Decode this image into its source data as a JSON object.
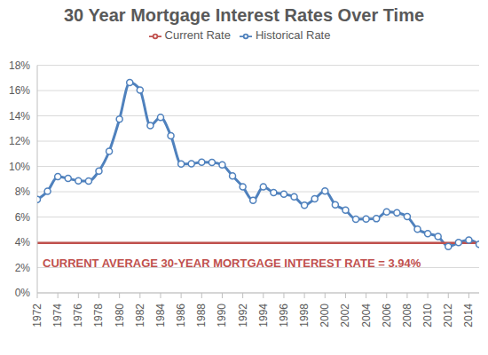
{
  "chart_data": {
    "type": "line",
    "title": "30 Year Mortgage Interest Rates Over Time",
    "x": [
      1972,
      1973,
      1974,
      1975,
      1976,
      1977,
      1978,
      1979,
      1980,
      1981,
      1982,
      1983,
      1984,
      1985,
      1986,
      1987,
      1988,
      1989,
      1990,
      1991,
      1992,
      1993,
      1994,
      1995,
      1996,
      1997,
      1998,
      1999,
      2000,
      2001,
      2002,
      2003,
      2004,
      2005,
      2006,
      2007,
      2008,
      2009,
      2010,
      2011,
      2012,
      2013,
      2014,
      2015
    ],
    "series": [
      {
        "name": "Historical Rate",
        "color": "#4f81bd",
        "marker": "circle",
        "values": [
          7.38,
          8.04,
          9.19,
          9.05,
          8.87,
          8.85,
          9.64,
          11.2,
          13.74,
          16.63,
          16.04,
          13.24,
          13.88,
          12.43,
          10.19,
          10.21,
          10.34,
          10.32,
          10.13,
          9.25,
          8.39,
          7.31,
          8.38,
          7.93,
          7.81,
          7.6,
          6.94,
          7.44,
          8.05,
          6.97,
          6.54,
          5.83,
          5.84,
          5.87,
          6.41,
          6.34,
          6.03,
          5.04,
          4.69,
          4.45,
          3.66,
          3.98,
          4.17,
          3.85
        ]
      },
      {
        "name": "Current Rate",
        "color": "#c0504d",
        "marker": "none",
        "values": [
          3.94,
          3.94,
          3.94,
          3.94,
          3.94,
          3.94,
          3.94,
          3.94,
          3.94,
          3.94,
          3.94,
          3.94,
          3.94,
          3.94,
          3.94,
          3.94,
          3.94,
          3.94,
          3.94,
          3.94,
          3.94,
          3.94,
          3.94,
          3.94,
          3.94,
          3.94,
          3.94,
          3.94,
          3.94,
          3.94,
          3.94,
          3.94,
          3.94,
          3.94,
          3.94,
          3.94,
          3.94,
          3.94,
          3.94,
          3.94,
          3.94,
          3.94,
          3.94,
          3.94
        ]
      }
    ],
    "xlim": [
      1972,
      2015
    ],
    "xticks": [
      1972,
      1974,
      1976,
      1978,
      1980,
      1982,
      1984,
      1986,
      1988,
      1990,
      1992,
      1994,
      1996,
      1998,
      2000,
      2002,
      2004,
      2006,
      2008,
      2010,
      2012,
      2014
    ],
    "ylim": [
      0,
      18
    ],
    "yticks": [
      {
        "value": 0,
        "label": "0%"
      },
      {
        "value": 2,
        "label": "2%"
      },
      {
        "value": 4,
        "label": "4%"
      },
      {
        "value": 6,
        "label": "6%"
      },
      {
        "value": 8,
        "label": "8%"
      },
      {
        "value": 10,
        "label": "10%"
      },
      {
        "value": 12,
        "label": "12%"
      },
      {
        "value": 14,
        "label": "14%"
      },
      {
        "value": 16,
        "label": "16%"
      },
      {
        "value": 18,
        "label": "18%"
      }
    ],
    "grid": true,
    "legend": "top",
    "annotations": [
      {
        "text": "CURRENT AVERAGE 30-YEAR MORTGAGE INTEREST RATE = 3.94%"
      }
    ]
  }
}
